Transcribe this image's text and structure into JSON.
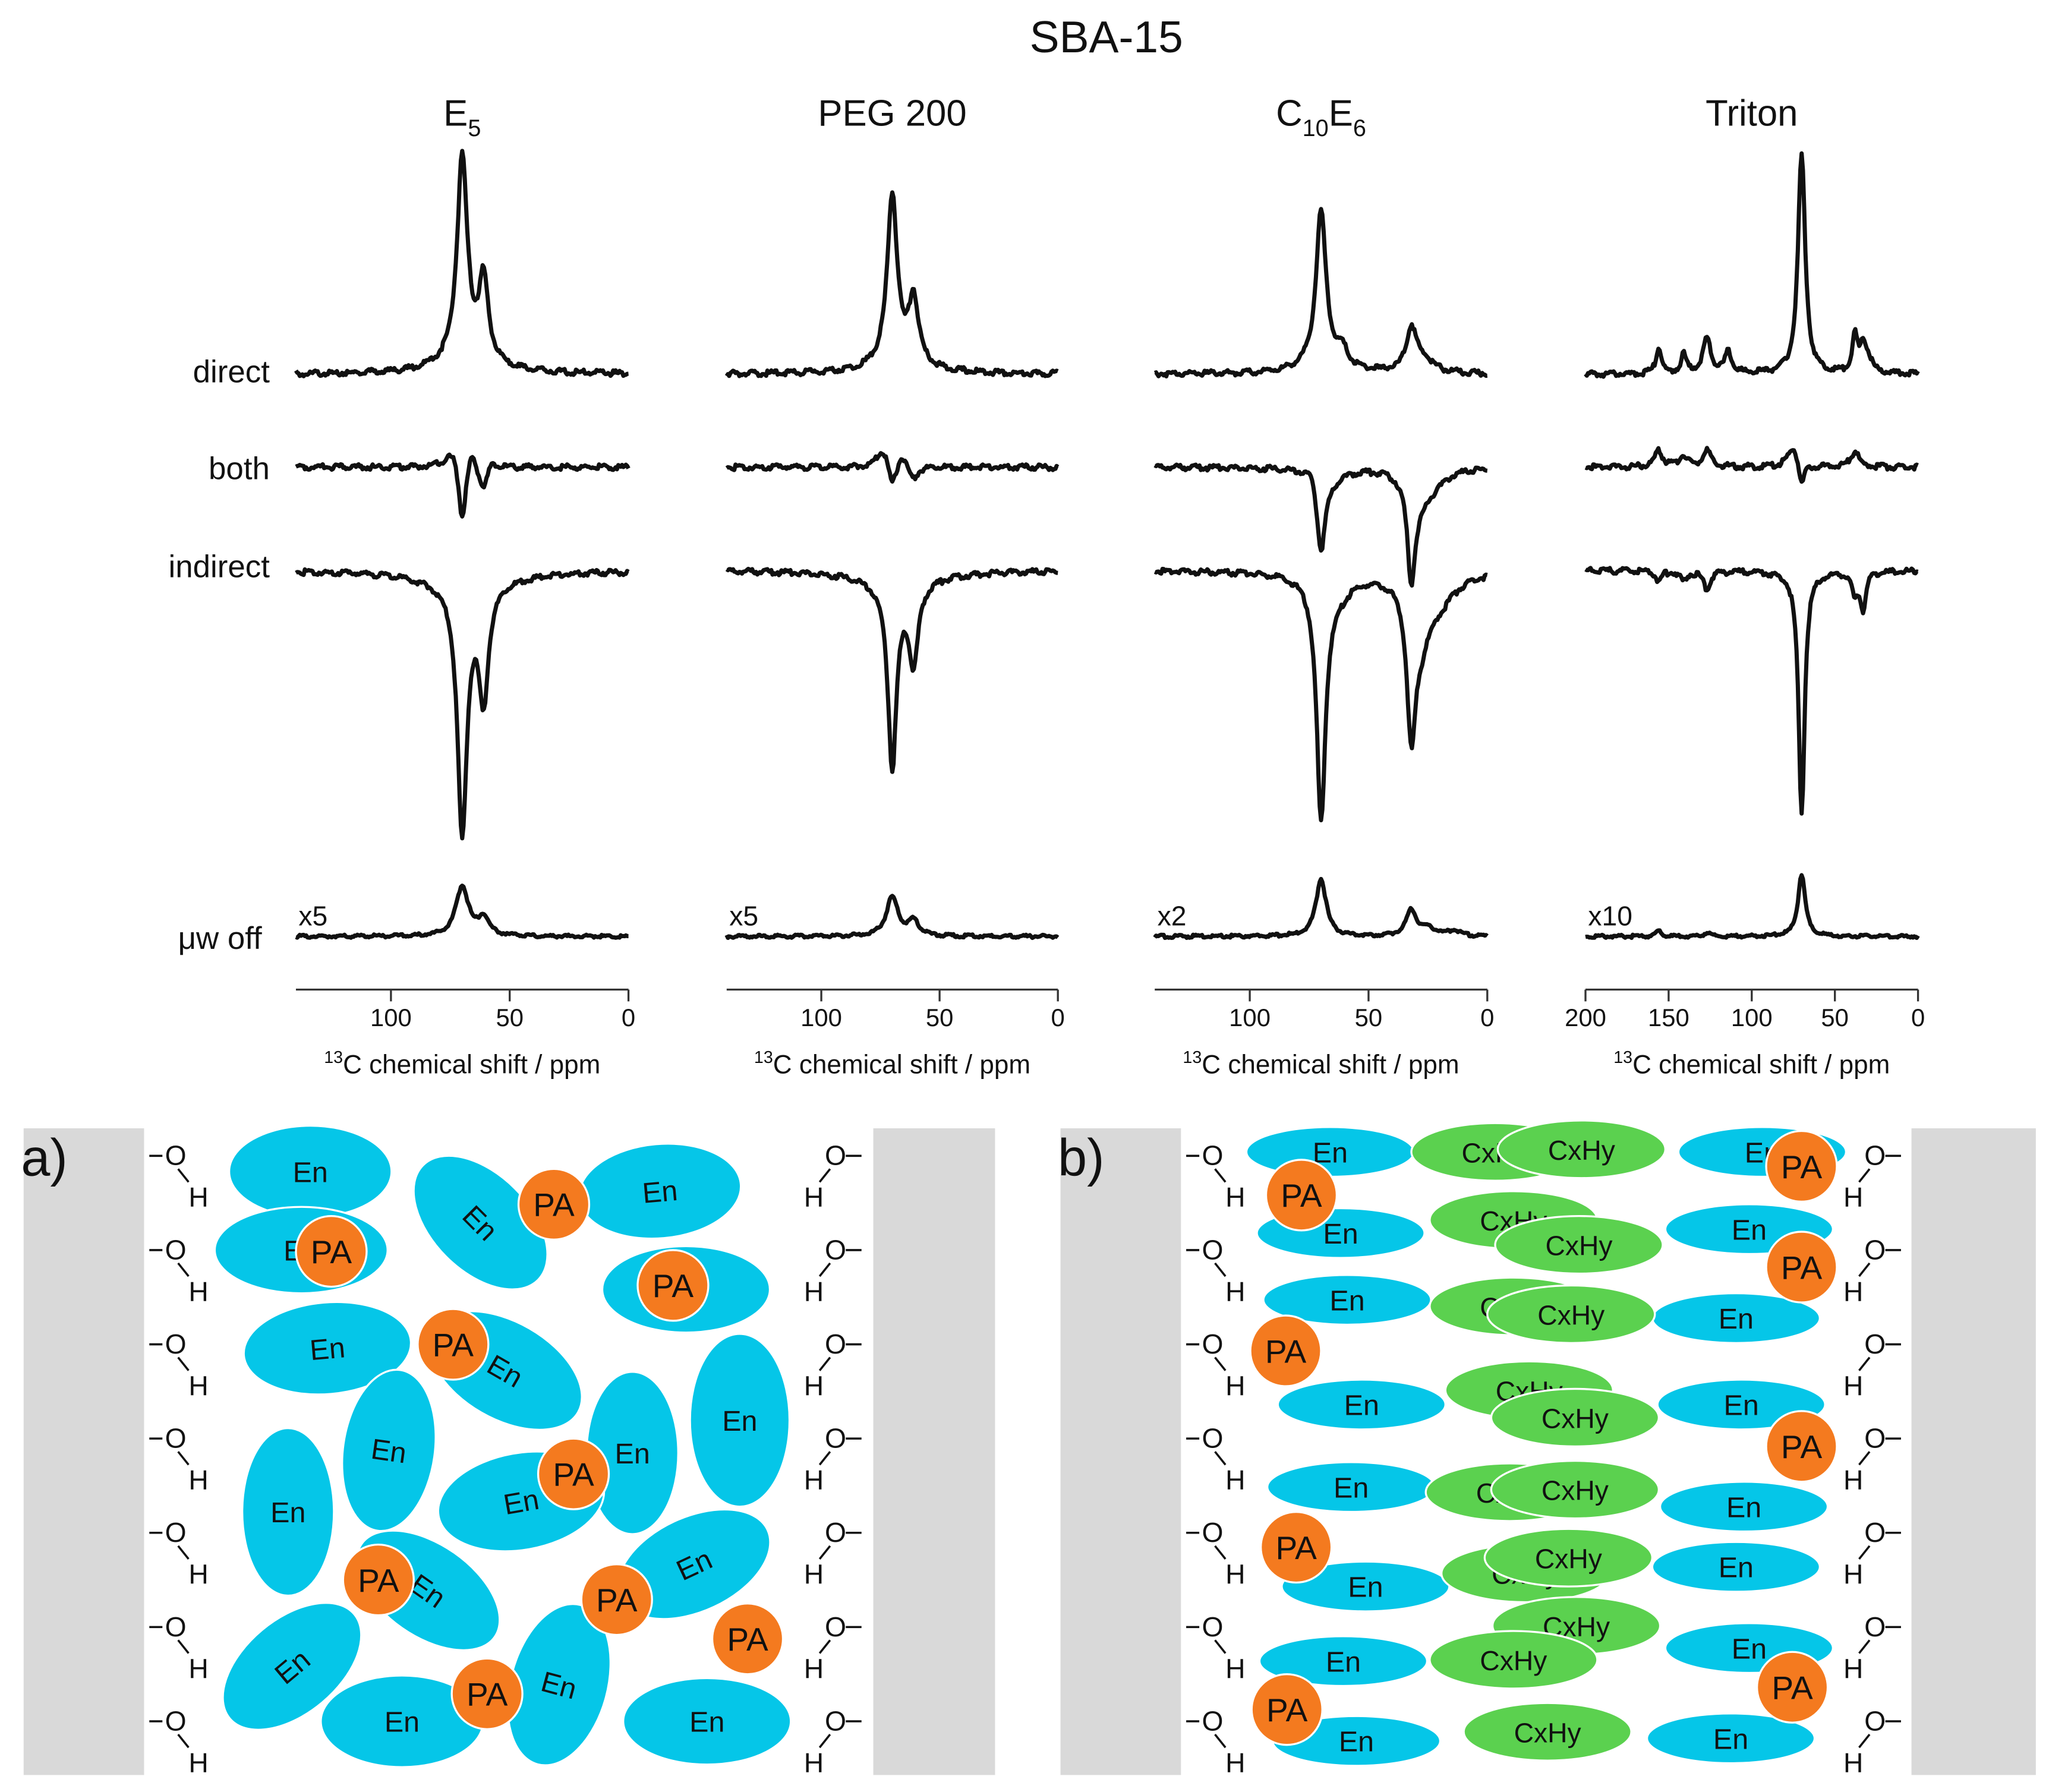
{
  "title": "SBA-15",
  "colors": {
    "trace": "#111111",
    "wall": "#d9d9d9",
    "en": "#05c6e8",
    "pa": "#f47a1f",
    "cxhy": "#5bd14f"
  },
  "row_labels": [
    "direct",
    "both",
    "indirect",
    "μw off"
  ],
  "panels": [
    {
      "base": "E",
      "sub": "5",
      "scale_label": "x5",
      "xmax": 140,
      "ticks": [
        {
          "v": 100,
          "label": "100"
        },
        {
          "v": 50,
          "label": "50"
        },
        {
          "v": 0,
          "label": "0"
        }
      ],
      "xlabel_sup": "13",
      "xlabel": "C chemical shift / ppm",
      "traces": {
        "direct": [
          {
            "c": 70,
            "h": 155,
            "w": 2.6
          },
          {
            "c": 61,
            "h": 62,
            "w": 2.4
          },
          {
            "c": 68,
            "h": 10,
            "w": 14
          }
        ],
        "both": [
          {
            "c": 74,
            "h": 14,
            "w": 4
          },
          {
            "c": 70,
            "h": -46,
            "w": 1.8
          },
          {
            "c": 66,
            "h": 14,
            "w": 1.8
          },
          {
            "c": 61,
            "h": -18,
            "w": 2
          },
          {
            "c": 57,
            "h": 5,
            "w": 3
          }
        ],
        "indirect": [
          {
            "c": 70,
            "h": -188,
            "w": 2.4
          },
          {
            "c": 61,
            "h": -85,
            "w": 2.4
          },
          {
            "c": 67,
            "h": -12,
            "w": 18
          }
        ],
        "off": [
          {
            "c": 70,
            "h": 38,
            "w": 3.2
          },
          {
            "c": 61,
            "h": 14,
            "w": 2.6
          }
        ]
      }
    },
    {
      "base": "PEG 200",
      "sub": "",
      "scale_label": "x5",
      "xmax": 140,
      "ticks": [
        {
          "v": 100,
          "label": "100"
        },
        {
          "v": 50,
          "label": "50"
        },
        {
          "v": 0,
          "label": "0"
        }
      ],
      "xlabel_sup": "13",
      "xlabel": "C chemical shift / ppm",
      "traces": {
        "direct": [
          {
            "c": 70,
            "h": 130,
            "w": 2.5
          },
          {
            "c": 61,
            "h": 50,
            "w": 2.4
          },
          {
            "c": 67,
            "h": 8,
            "w": 14
          }
        ],
        "both": [
          {
            "c": 74,
            "h": 14,
            "w": 3
          },
          {
            "c": 70,
            "h": -18,
            "w": 1.8
          },
          {
            "c": 66,
            "h": 10,
            "w": 1.8
          },
          {
            "c": 61,
            "h": -10,
            "w": 2
          }
        ],
        "indirect": [
          {
            "c": 70,
            "h": -140,
            "w": 2.2
          },
          {
            "c": 61,
            "h": -60,
            "w": 2.3
          },
          {
            "c": 67,
            "h": -10,
            "w": 16
          }
        ],
        "off": [
          {
            "c": 70,
            "h": 30,
            "w": 3
          },
          {
            "c": 61,
            "h": 11,
            "w": 2.6
          }
        ]
      }
    },
    {
      "base": "C",
      "sub": "10",
      "base2": "E",
      "sub2": "6",
      "scale_label": "x2",
      "xmax": 140,
      "ticks": [
        {
          "v": 100,
          "label": "100"
        },
        {
          "v": 50,
          "label": "50"
        },
        {
          "v": 0,
          "label": "0"
        }
      ],
      "xlabel_sup": "13",
      "xlabel": "C chemical shift / ppm",
      "traces": {
        "direct": [
          {
            "c": 70,
            "h": 118,
            "w": 2.6
          },
          {
            "c": 61,
            "h": 12,
            "w": 2.5
          },
          {
            "c": 32,
            "h": 32,
            "w": 2.5
          },
          {
            "c": 27,
            "h": 10,
            "w": 5
          },
          {
            "c": 68,
            "h": 6,
            "w": 12
          }
        ],
        "both": [
          {
            "c": 74,
            "h": 8,
            "w": 3
          },
          {
            "c": 70,
            "h": -60,
            "w": 2.2
          },
          {
            "c": 66,
            "h": -8,
            "w": 6
          },
          {
            "c": 32,
            "h": -75,
            "w": 2
          },
          {
            "c": 28,
            "h": -20,
            "w": 5
          },
          {
            "c": 22,
            "h": -8,
            "w": 6
          }
        ],
        "indirect": [
          {
            "c": 70,
            "h": -178,
            "w": 2.2
          },
          {
            "c": 65,
            "h": -18,
            "w": 8
          },
          {
            "c": 32,
            "h": -105,
            "w": 2.2
          },
          {
            "c": 28,
            "h": -40,
            "w": 5
          },
          {
            "c": 20,
            "h": -18,
            "w": 8
          }
        ],
        "off": [
          {
            "c": 70,
            "h": 44,
            "w": 2.6
          },
          {
            "c": 32,
            "h": 20,
            "w": 2.5
          },
          {
            "c": 25,
            "h": 6,
            "w": 4
          },
          {
            "c": 14,
            "h": 4,
            "w": 3
          }
        ]
      }
    },
    {
      "base": "Triton",
      "sub": "",
      "scale_label": "x10",
      "xmax": 200,
      "ticks": [
        {
          "v": 200,
          "label": "200"
        },
        {
          "v": 150,
          "label": "150"
        },
        {
          "v": 100,
          "label": "100"
        },
        {
          "v": 50,
          "label": "50"
        },
        {
          "v": 0,
          "label": "0"
        }
      ],
      "xlabel_sup": "13",
      "xlabel": "C chemical shift / ppm",
      "traces": {
        "direct": [
          {
            "c": 70,
            "h": 168,
            "w": 2.6
          },
          {
            "c": 156,
            "h": 20,
            "w": 2
          },
          {
            "c": 141,
            "h": 14,
            "w": 2
          },
          {
            "c": 127,
            "h": 26,
            "w": 3
          },
          {
            "c": 114,
            "h": 16,
            "w": 2.5
          },
          {
            "c": 38,
            "h": 28,
            "w": 2
          },
          {
            "c": 33,
            "h": 18,
            "w": 2
          },
          {
            "c": 30,
            "h": 10,
            "w": 3
          }
        ],
        "both": [
          {
            "c": 156,
            "h": 12,
            "w": 3
          },
          {
            "c": 141,
            "h": 8,
            "w": 3
          },
          {
            "c": 127,
            "h": 12,
            "w": 3
          },
          {
            "c": 75,
            "h": 16,
            "w": 4
          },
          {
            "c": 70,
            "h": -18,
            "w": 2
          },
          {
            "c": 38,
            "h": 12,
            "w": 3
          }
        ],
        "indirect": [
          {
            "c": 70,
            "h": -185,
            "w": 2.2
          },
          {
            "c": 156,
            "h": -8,
            "w": 2
          },
          {
            "c": 141,
            "h": -8,
            "w": 2
          },
          {
            "c": 127,
            "h": -14,
            "w": 2.5
          },
          {
            "c": 38,
            "h": -18,
            "w": 2
          },
          {
            "c": 33,
            "h": -28,
            "w": 2
          }
        ],
        "off": [
          {
            "c": 70,
            "h": 48,
            "w": 2.6
          },
          {
            "c": 156,
            "h": 4,
            "w": 2
          },
          {
            "c": 127,
            "h": 3,
            "w": 2
          }
        ]
      }
    }
  ],
  "scheme_a": {
    "label": "a)",
    "oh_o": "O",
    "oh_h": "H",
    "en_label": "En",
    "pa_label": "PA"
  },
  "scheme_b": {
    "label": "b)",
    "oh_o": "O",
    "oh_h": "H",
    "en_label": "En",
    "pa_label": "PA",
    "cxhy_label": "CxHy"
  }
}
